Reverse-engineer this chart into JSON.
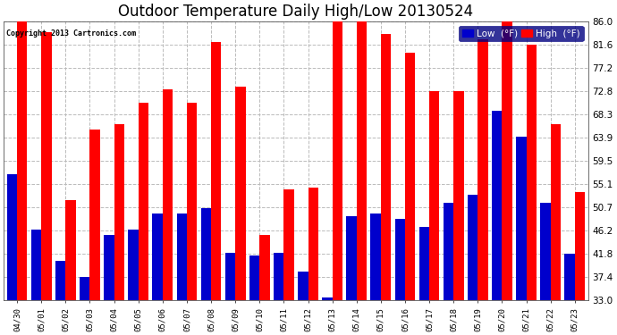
{
  "title": "Outdoor Temperature Daily High/Low 20130524",
  "copyright": "Copyright 2013 Cartronics.com",
  "dates": [
    "04/30",
    "05/01",
    "05/02",
    "05/03",
    "05/04",
    "05/05",
    "05/06",
    "05/07",
    "05/08",
    "05/09",
    "05/10",
    "05/11",
    "05/12",
    "05/13",
    "05/14",
    "05/15",
    "05/16",
    "05/17",
    "05/18",
    "05/19",
    "05/20",
    "05/21",
    "05/22",
    "05/23"
  ],
  "high": [
    86.0,
    84.0,
    52.0,
    65.5,
    66.5,
    70.5,
    73.0,
    70.5,
    82.0,
    73.5,
    45.5,
    54.0,
    54.5,
    87.0,
    86.0,
    83.5,
    80.0,
    72.8,
    72.8,
    82.5,
    86.0,
    81.6,
    66.5,
    53.5
  ],
  "low": [
    57.0,
    46.5,
    40.5,
    37.5,
    45.5,
    46.5,
    49.5,
    49.5,
    50.5,
    42.0,
    41.5,
    42.0,
    38.5,
    33.5,
    49.0,
    49.5,
    48.5,
    47.0,
    51.5,
    53.0,
    69.0,
    64.0,
    51.5,
    41.8
  ],
  "high_color": "#ff0000",
  "low_color": "#0000cc",
  "bg_color": "#ffffff",
  "plot_bg_color": "#ffffff",
  "grid_color": "#bbbbbb",
  "yticks": [
    33.0,
    37.4,
    41.8,
    46.2,
    50.7,
    55.1,
    59.5,
    63.9,
    68.3,
    72.8,
    77.2,
    81.6,
    86.0
  ],
  "ymin": 33.0,
  "ymax": 86.0,
  "bar_width": 0.42,
  "title_fontsize": 12,
  "legend_low_label": "Low  (°F)",
  "legend_high_label": "High  (°F)"
}
